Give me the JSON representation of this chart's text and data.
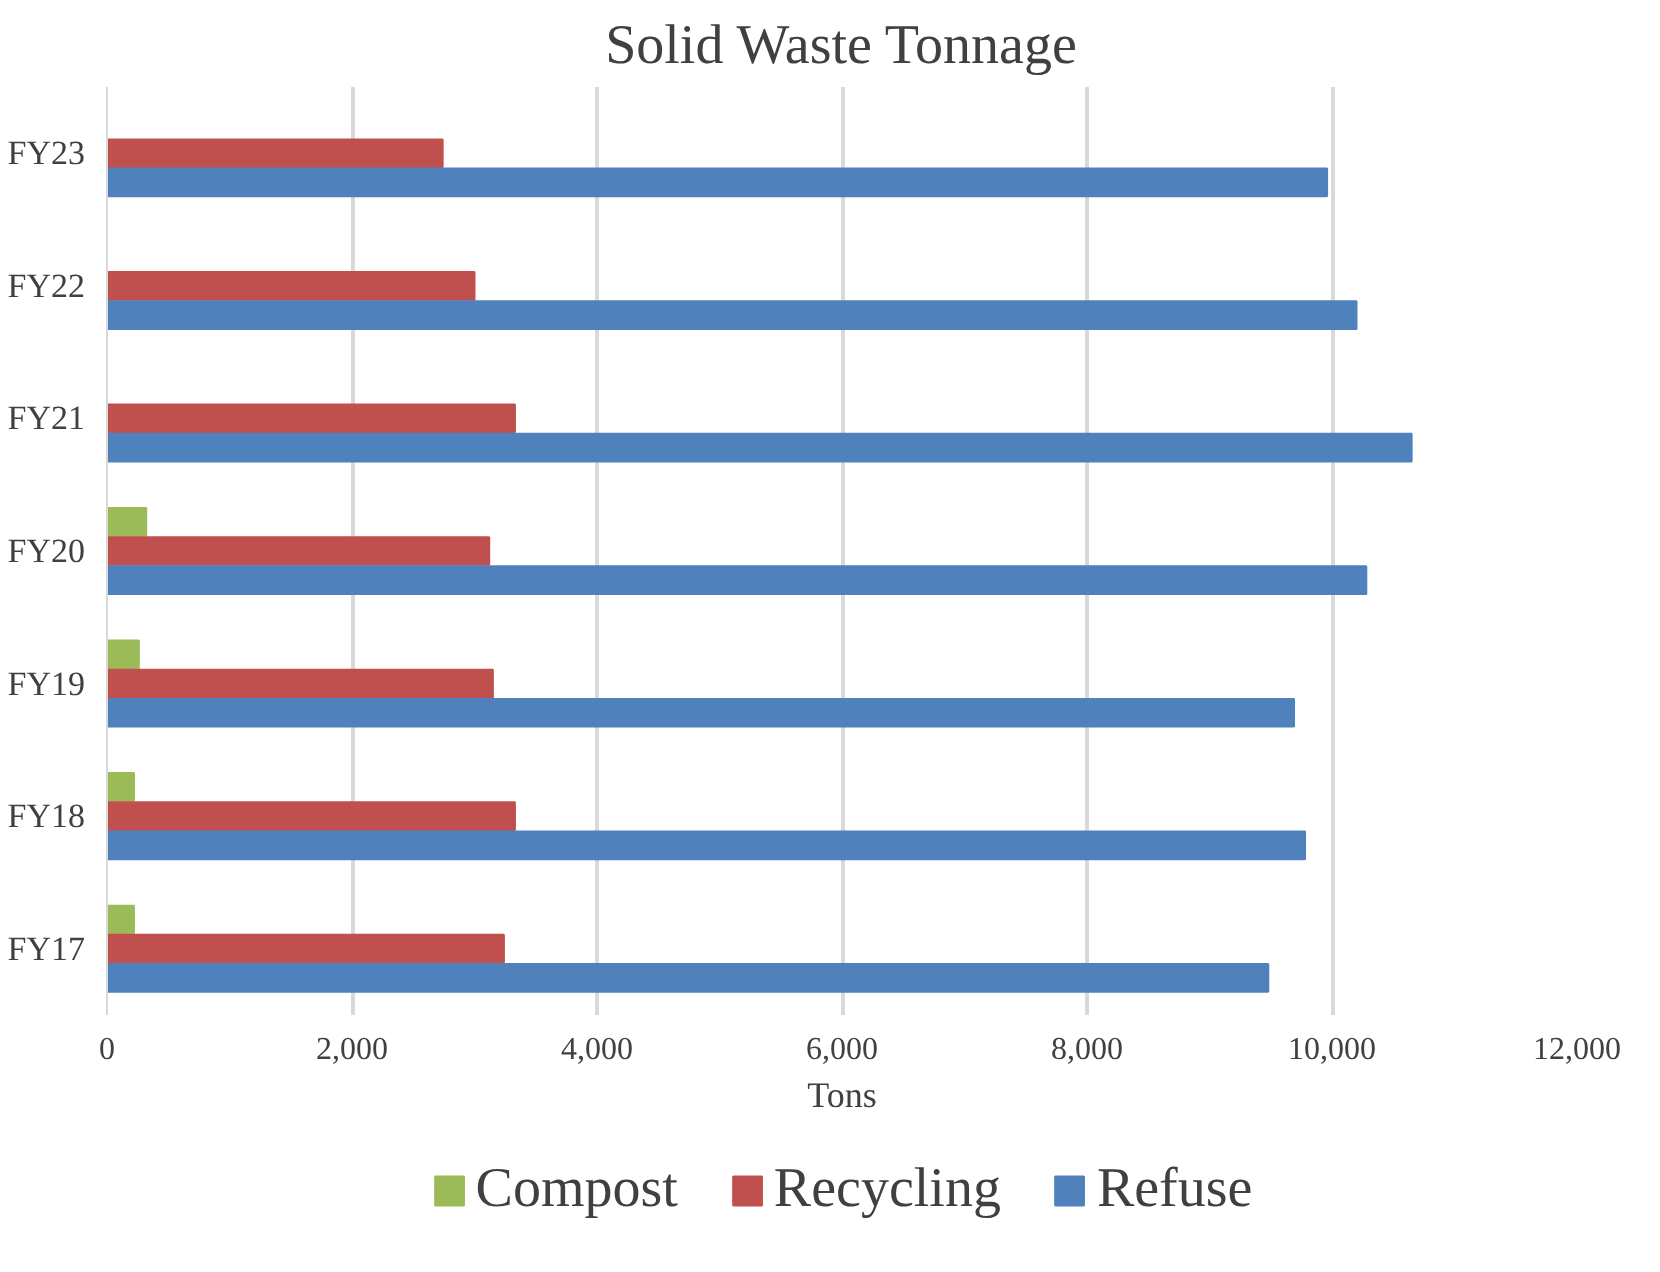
{
  "chart_data": {
    "type": "bar",
    "orientation": "horizontal",
    "title": "Solid Waste Tonnage",
    "xlabel": "Tons",
    "categories": [
      "FY23",
      "FY22",
      "FY21",
      "FY20",
      "FY19",
      "FY18",
      "FY17"
    ],
    "series": [
      {
        "name": "Compost",
        "color": "#9bbb59",
        "values": [
          null,
          null,
          null,
          320,
          260,
          220,
          220
        ]
      },
      {
        "name": "Recycling",
        "color": "#c0504d",
        "values": [
          2740,
          3000,
          3330,
          3120,
          3150,
          3330,
          3240
        ]
      },
      {
        "name": "Refuse",
        "color": "#4f81bd",
        "values": [
          9960,
          10200,
          10650,
          10280,
          9690,
          9780,
          9480
        ]
      }
    ],
    "xlim": [
      0,
      12000
    ],
    "xticks": [
      {
        "value": 0,
        "label": "0"
      },
      {
        "value": 2000,
        "label": "2,000"
      },
      {
        "value": 4000,
        "label": "4,000"
      },
      {
        "value": 6000,
        "label": "6,000"
      },
      {
        "value": 8000,
        "label": "8,000"
      },
      {
        "value": 10000,
        "label": "10,000"
      },
      {
        "value": 12000,
        "label": "12,000"
      }
    ],
    "grid": "x",
    "legend": "bottom"
  }
}
